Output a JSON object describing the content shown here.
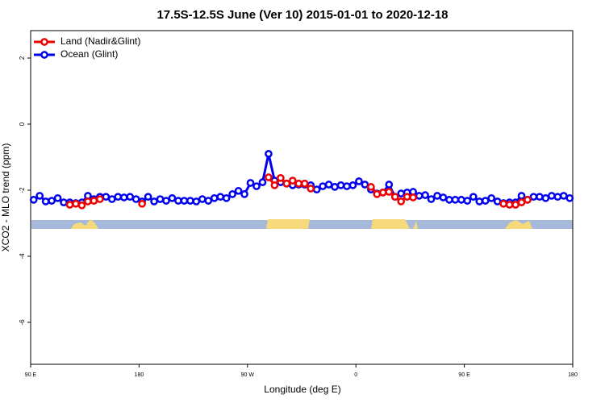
{
  "chart_data": {
    "type": "line",
    "title": "17.5S-12.5S June (Ver 10)   2015-01-01 to 2020-12-18",
    "x_label": "Longitude (deg E)",
    "y_label": "XCO2 - MLO trend (ppm)",
    "xlim": [
      90,
      540
    ],
    "ylim": [
      -7.27,
      2.83
    ],
    "xticks": [
      {
        "value": 90,
        "label": "90 E"
      },
      {
        "value": 180,
        "label": "180"
      },
      {
        "value": 270,
        "label": "90 W"
      },
      {
        "value": 360,
        "label": "0"
      },
      {
        "value": 450,
        "label": "90 E"
      },
      {
        "value": 540,
        "label": "180"
      }
    ],
    "yticks": [
      -6,
      -4,
      -2,
      0,
      2
    ],
    "legend": "top-left",
    "x": [
      92.5,
      97.5,
      102.5,
      107.5,
      112.5,
      117.5,
      122.5,
      127.5,
      132.5,
      137.5,
      142.5,
      147.5,
      152.5,
      157.5,
      162.5,
      167.5,
      172.5,
      177.5,
      182.5,
      187.5,
      192.5,
      197.5,
      202.5,
      207.5,
      212.5,
      217.5,
      222.5,
      227.5,
      232.5,
      237.5,
      242.5,
      247.5,
      252.5,
      257.5,
      262.5,
      267.5,
      272.5,
      277.5,
      282.5,
      287.5,
      292.5,
      297.5,
      302.5,
      307.5,
      312.5,
      317.5,
      322.5,
      327.5,
      332.5,
      337.5,
      342.5,
      347.5,
      352.5,
      357.5,
      362.5,
      367.5,
      372.5,
      377.5,
      382.5,
      387.5,
      392.5,
      397.5,
      402.5,
      407.5,
      412.5,
      417.5,
      422.5,
      427.5,
      432.5,
      437.5,
      442.5,
      447.5,
      452.5,
      457.5,
      462.5,
      467.5,
      472.5,
      477.5,
      482.5,
      487.5,
      492.5,
      497.5,
      502.5,
      507.5,
      512.5,
      517.5,
      522.5,
      527.5,
      532.5,
      537.5
    ],
    "series": [
      {
        "name": "Ocean (Glint)",
        "color": "#0000ee",
        "values": [
          -2.29,
          -2.17,
          -2.34,
          -2.32,
          -2.24,
          -2.37,
          -2.37,
          -2.39,
          -2.37,
          -2.17,
          -2.27,
          -2.2,
          -2.2,
          -2.27,
          -2.2,
          -2.22,
          -2.2,
          -2.27,
          -2.34,
          -2.2,
          -2.34,
          -2.27,
          -2.32,
          -2.24,
          -2.32,
          -2.32,
          -2.32,
          -2.34,
          -2.27,
          -2.32,
          -2.24,
          -2.2,
          -2.24,
          -2.12,
          -2.02,
          -2.12,
          -1.78,
          -1.88,
          -1.76,
          -0.9,
          -1.71,
          -1.76,
          -1.8,
          -1.85,
          -1.83,
          -1.83,
          -1.85,
          -1.98,
          -1.88,
          -1.83,
          -1.9,
          -1.85,
          -1.88,
          -1.85,
          -1.73,
          -1.83,
          -1.98,
          -2.1,
          -2.07,
          -1.83,
          -2.2,
          -2.1,
          -2.07,
          -2.05,
          -2.17,
          -2.15,
          -2.27,
          -2.17,
          -2.22,
          -2.29,
          -2.29,
          -2.29,
          -2.32,
          -2.2,
          -2.34,
          -2.32,
          -2.24,
          -2.34,
          -2.39,
          -2.37,
          -2.37,
          -2.17,
          -2.29,
          -2.2,
          -2.2,
          -2.24,
          -2.17,
          -2.2,
          -2.17,
          -2.24
        ]
      },
      {
        "name": "Land (Nadir&Glint)",
        "color": "#ee0000",
        "values": [
          null,
          null,
          null,
          null,
          null,
          null,
          -2.44,
          -2.41,
          -2.46,
          -2.34,
          -2.32,
          -2.27,
          null,
          null,
          null,
          null,
          null,
          null,
          -2.41,
          null,
          null,
          null,
          null,
          null,
          null,
          null,
          null,
          null,
          null,
          null,
          null,
          null,
          null,
          null,
          null,
          null,
          null,
          null,
          null,
          -1.61,
          -1.85,
          -1.63,
          -1.8,
          -1.71,
          -1.8,
          -1.8,
          -1.95,
          null,
          null,
          null,
          null,
          null,
          null,
          null,
          null,
          null,
          -1.9,
          -2.12,
          -2.07,
          -2.05,
          -2.2,
          -2.34,
          -2.2,
          -2.22,
          null,
          null,
          null,
          null,
          null,
          null,
          null,
          null,
          null,
          null,
          null,
          null,
          null,
          null,
          -2.41,
          -2.44,
          -2.44,
          -2.37,
          -2.29,
          null,
          null,
          null,
          null,
          null,
          null,
          null
        ]
      }
    ]
  }
}
